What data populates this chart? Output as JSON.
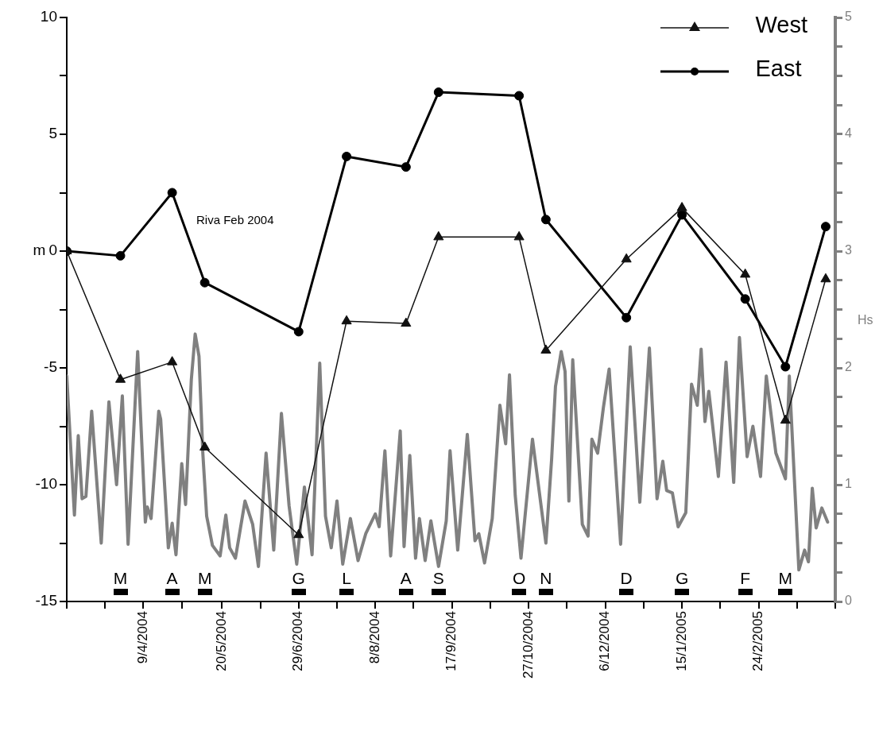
{
  "chart_data": {
    "type": "line",
    "ylabel": "m",
    "y2label": "Hs",
    "legend": "top right",
    "x": [
      "2004-02-29",
      "2004-03-28",
      "2004-04-24",
      "2004-05-11",
      "2004-06-29",
      "2004-07-24",
      "2004-08-24",
      "2004-09-10",
      "2004-10-22",
      "2004-11-05",
      "2004-12-17",
      "2005-01-15",
      "2005-02-17",
      "2005-03-10",
      "2005-03-31"
    ],
    "series": [
      {
        "name": "West",
        "color": "#111111",
        "marker": "triangle",
        "values": [
          0,
          -5.5,
          -4.75,
          -8.4,
          -12.15,
          -3.0,
          -3.1,
          0.6,
          0.6,
          -4.25,
          -0.35,
          1.85,
          -1.0,
          -7.25,
          -1.2
        ]
      },
      {
        "name": "East",
        "color": "#000000",
        "marker": "circle",
        "values": [
          0,
          -0.2,
          2.5,
          -1.35,
          -3.45,
          4.05,
          3.6,
          6.8,
          6.65,
          1.35,
          -2.85,
          1.55,
          -2.05,
          -4.95,
          1.05
        ]
      },
      {
        "color": "#808080",
        "marker": "none",
        "axis": "y2",
        "x": [
          "2004-02-29",
          "2004-03-04",
          "2004-03-06",
          "2004-03-08",
          "2004-03-10",
          "2004-03-13",
          "2004-03-18",
          "2004-03-22",
          "2004-03-26",
          "2004-03-29",
          "2004-04-01",
          "2004-04-06",
          "2004-04-10",
          "2004-04-11",
          "2004-04-13",
          "2004-04-17",
          "2004-04-18",
          "2004-04-22",
          "2004-04-24",
          "2004-04-26",
          "2004-04-29",
          "2004-05-01",
          "2004-05-04",
          "2004-05-06",
          "2004-05-08",
          "2004-05-10",
          "2004-05-12",
          "2004-05-15",
          "2004-05-19",
          "2004-05-22",
          "2004-05-24",
          "2004-05-27",
          "2004-06-01",
          "2004-06-05",
          "2004-06-08",
          "2004-06-12",
          "2004-06-16",
          "2004-06-20",
          "2004-06-24",
          "2004-06-28",
          "2004-07-02",
          "2004-07-06",
          "2004-07-10",
          "2004-07-13",
          "2004-07-16",
          "2004-07-19",
          "2004-07-22",
          "2004-07-26",
          "2004-07-30",
          "2004-08-03",
          "2004-08-08",
          "2004-08-10",
          "2004-08-13",
          "2004-08-16",
          "2004-08-21",
          "2004-08-23",
          "2004-08-26",
          "2004-08-29",
          "2004-08-31",
          "2004-09-03",
          "2004-09-06",
          "2004-09-10",
          "2004-09-14",
          "2004-09-16",
          "2004-09-20",
          "2004-09-25",
          "2004-09-29",
          "2004-10-01",
          "2004-10-04",
          "2004-10-08",
          "2004-10-12",
          "2004-10-15",
          "2004-10-17",
          "2004-10-20",
          "2004-10-23",
          "2004-10-29",
          "2004-11-05",
          "2004-11-08",
          "2004-11-10",
          "2004-11-13",
          "2004-11-15",
          "2004-11-17",
          "2004-11-19",
          "2004-11-24",
          "2004-11-27",
          "2004-11-29",
          "2004-12-02",
          "2004-12-05",
          "2004-12-08",
          "2004-12-14",
          "2004-12-19",
          "2004-12-24",
          "2004-12-29",
          "2005-01-02",
          "2005-01-05",
          "2005-01-07",
          "2005-01-10",
          "2005-01-13",
          "2005-01-17",
          "2005-01-20",
          "2005-01-23",
          "2005-01-25",
          "2005-01-27",
          "2005-01-29",
          "2005-02-03",
          "2005-02-07",
          "2005-02-11",
          "2005-02-14",
          "2005-02-18",
          "2005-02-21",
          "2005-02-25",
          "2005-02-28",
          "2005-03-05",
          "2005-03-10",
          "2005-03-12",
          "2005-03-17",
          "2005-03-20",
          "2005-03-22",
          "2005-03-24",
          "2005-03-26",
          "2005-03-29",
          "2005-04-01"
        ],
        "values": [
          1.93,
          0.74,
          1.42,
          0.88,
          0.9,
          1.63,
          0.5,
          1.71,
          1.0,
          1.76,
          0.49,
          2.14,
          0.68,
          0.81,
          0.71,
          1.63,
          1.56,
          0.46,
          0.67,
          0.4,
          1.18,
          0.83,
          1.9,
          2.29,
          2.1,
          1.27,
          0.73,
          0.48,
          0.39,
          0.74,
          0.46,
          0.37,
          0.86,
          0.66,
          0.3,
          1.27,
          0.44,
          1.61,
          0.82,
          0.32,
          0.98,
          0.4,
          2.04,
          0.73,
          0.46,
          0.86,
          0.32,
          0.71,
          0.35,
          0.58,
          0.75,
          0.64,
          1.29,
          0.39,
          1.46,
          0.47,
          1.25,
          0.37,
          0.71,
          0.35,
          0.69,
          0.3,
          0.69,
          1.29,
          0.44,
          1.43,
          0.52,
          0.58,
          0.33,
          0.71,
          1.68,
          1.35,
          1.94,
          0.91,
          0.37,
          1.39,
          0.5,
          1.22,
          1.84,
          2.14,
          1.97,
          0.86,
          2.07,
          0.66,
          0.56,
          1.39,
          1.27,
          1.66,
          1.99,
          0.49,
          2.18,
          0.85,
          2.17,
          0.88,
          1.2,
          0.95,
          0.93,
          0.64,
          0.76,
          1.86,
          1.68,
          2.16,
          1.54,
          1.8,
          1.07,
          2.05,
          1.02,
          2.26,
          1.24,
          1.5,
          1.07,
          1.93,
          1.27,
          1.05,
          1.93,
          0.27,
          0.44,
          0.34,
          0.97,
          0.63,
          0.8,
          0.68
        ]
      }
    ],
    "xlim": [
      "2004-02-29",
      "2005-04-05"
    ],
    "xticks": [
      {
        "value": "2004-02-29",
        "label": null
      },
      {
        "value": "2004-03-20",
        "label": null
      },
      {
        "value": "2004-04-09",
        "label": "9/4/2004"
      },
      {
        "value": "2004-04-29",
        "label": null
      },
      {
        "value": "2004-05-20",
        "label": "20/5/2004"
      },
      {
        "value": "2004-06-09",
        "label": null
      },
      {
        "value": "2004-06-29",
        "label": "29/6/2004"
      },
      {
        "value": "2004-07-19",
        "label": null
      },
      {
        "value": "2004-08-08",
        "label": "8/8/2004"
      },
      {
        "value": "2004-08-28",
        "label": null
      },
      {
        "value": "2004-09-17",
        "label": "17/9/2004"
      },
      {
        "value": "2004-10-07",
        "label": null
      },
      {
        "value": "2004-10-27",
        "label": "27/10/2004"
      },
      {
        "value": "2004-11-16",
        "label": null
      },
      {
        "value": "2004-12-06",
        "label": "6/12/2004"
      },
      {
        "value": "2004-12-26",
        "label": null
      },
      {
        "value": "2005-01-15",
        "label": "15/1/2005"
      },
      {
        "value": "2005-02-04",
        "label": null
      },
      {
        "value": "2005-02-24",
        "label": "24/2/2005"
      },
      {
        "value": "2005-03-16",
        "label": null
      },
      {
        "value": "2005-04-05",
        "label": null
      }
    ],
    "ylim": [
      -15,
      10
    ],
    "yticks": [
      -15,
      {
        "value": -12.5,
        "label": null
      },
      -10,
      {
        "value": -7.5,
        "label": null
      },
      -5,
      {
        "value": -2.5,
        "label": null
      },
      0,
      {
        "value": 2.5,
        "label": null
      },
      5,
      {
        "value": 7.5,
        "label": null
      },
      10
    ],
    "y2lim": [
      0,
      5
    ],
    "y2ticks": [
      0,
      {
        "value": 0.25,
        "label": null
      },
      {
        "value": 0.5,
        "label": null
      },
      {
        "value": 0.75,
        "label": null
      },
      1,
      {
        "value": 1.25,
        "label": null
      },
      {
        "value": 1.5,
        "label": null
      },
      {
        "value": 1.75,
        "label": null
      },
      2,
      {
        "value": 2.25,
        "label": null
      },
      {
        "value": 2.5,
        "label": null
      },
      {
        "value": 2.75,
        "label": null
      },
      3,
      {
        "value": 3.25,
        "label": null
      },
      {
        "value": 3.5,
        "label": null
      },
      {
        "value": 3.75,
        "label": null
      },
      4,
      {
        "value": 4.25,
        "label": null
      },
      {
        "value": 4.5,
        "label": null
      },
      {
        "value": 4.75,
        "label": null
      },
      5
    ],
    "annotations": [
      "Riva Feb 2004",
      "M",
      "A",
      "M",
      "G",
      "L",
      "A",
      "S",
      "O",
      "N",
      "D",
      "G",
      "F",
      "M"
    ]
  }
}
